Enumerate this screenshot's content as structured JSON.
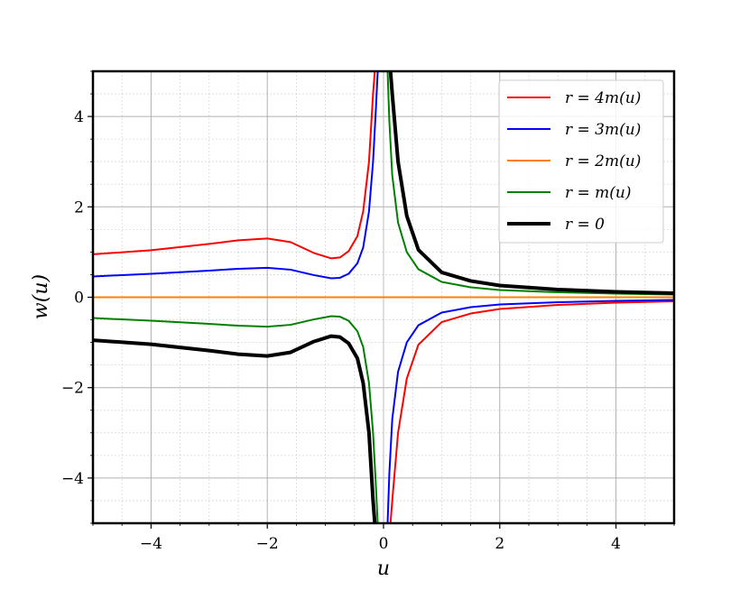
{
  "chart_data": {
    "type": "line",
    "title": "",
    "xlabel": "u",
    "ylabel": "w(u)",
    "xlim": [
      -5,
      5
    ],
    "ylim": [
      -5,
      5
    ],
    "grid": "major and minor",
    "legend_position": "top-right",
    "x_ticks": [
      {
        "value": -4,
        "label": "−4"
      },
      {
        "value": -2,
        "label": "−2"
      },
      {
        "value": 0,
        "label": "0"
      },
      {
        "value": 2,
        "label": "2"
      },
      {
        "value": 4,
        "label": "4"
      }
    ],
    "y_ticks": [
      {
        "value": -4,
        "label": "−4"
      },
      {
        "value": -2,
        "label": "−2"
      },
      {
        "value": 0,
        "label": "0"
      },
      {
        "value": 2,
        "label": "2"
      },
      {
        "value": 4,
        "label": "4"
      }
    ],
    "series": [
      {
        "name": "r = 4m(u)",
        "color": "#ff0000",
        "width": 2,
        "segments": [
          [
            [
              -5.0,
              0.95
            ],
            [
              -4.0,
              1.04
            ],
            [
              -3.0,
              1.18
            ],
            [
              -2.5,
              1.26
            ],
            [
              -2.0,
              1.3
            ],
            [
              -1.6,
              1.22
            ],
            [
              -1.2,
              0.98
            ],
            [
              -0.9,
              0.86
            ],
            [
              -0.75,
              0.88
            ],
            [
              -0.6,
              1.02
            ],
            [
              -0.45,
              1.35
            ],
            [
              -0.35,
              1.9
            ],
            [
              -0.25,
              3.0
            ],
            [
              -0.18,
              4.5
            ],
            [
              -0.15,
              5.0
            ]
          ],
          [
            [
              0.12,
              -5.0
            ],
            [
              0.15,
              -4.5
            ],
            [
              0.25,
              -3.0
            ],
            [
              0.4,
              -1.8
            ],
            [
              0.6,
              -1.05
            ],
            [
              1.0,
              -0.55
            ],
            [
              1.5,
              -0.36
            ],
            [
              2.0,
              -0.26
            ],
            [
              3.0,
              -0.17
            ],
            [
              4.0,
              -0.12
            ],
            [
              5.0,
              -0.09
            ]
          ]
        ]
      },
      {
        "name": "r = 3m(u)",
        "color": "#0000ff",
        "width": 2,
        "segments": [
          [
            [
              -5.0,
              0.46
            ],
            [
              -4.0,
              0.52
            ],
            [
              -3.0,
              0.59
            ],
            [
              -2.5,
              0.63
            ],
            [
              -2.0,
              0.65
            ],
            [
              -1.6,
              0.61
            ],
            [
              -1.2,
              0.49
            ],
            [
              -0.9,
              0.42
            ],
            [
              -0.75,
              0.43
            ],
            [
              -0.6,
              0.52
            ],
            [
              -0.45,
              0.75
            ],
            [
              -0.35,
              1.1
            ],
            [
              -0.25,
              1.9
            ],
            [
              -0.18,
              3.0
            ],
            [
              -0.13,
              4.2
            ],
            [
              -0.1,
              5.0
            ]
          ],
          [
            [
              0.07,
              -5.0
            ],
            [
              0.1,
              -3.9
            ],
            [
              0.15,
              -2.7
            ],
            [
              0.25,
              -1.65
            ],
            [
              0.4,
              -1.0
            ],
            [
              0.6,
              -0.62
            ],
            [
              1.0,
              -0.34
            ],
            [
              1.5,
              -0.22
            ],
            [
              2.0,
              -0.16
            ],
            [
              3.0,
              -0.11
            ],
            [
              4.0,
              -0.08
            ],
            [
              5.0,
              -0.06
            ]
          ]
        ]
      },
      {
        "name": "r = 2m(u)",
        "color": "#ff8000",
        "width": 2,
        "segments": [
          [
            [
              -5.0,
              0.0
            ],
            [
              5.0,
              0.0
            ]
          ]
        ]
      },
      {
        "name": "r = m(u)",
        "color": "#008000",
        "width": 2,
        "segments": [
          [
            [
              -5.0,
              -0.46
            ],
            [
              -4.0,
              -0.52
            ],
            [
              -3.0,
              -0.59
            ],
            [
              -2.5,
              -0.63
            ],
            [
              -2.0,
              -0.65
            ],
            [
              -1.6,
              -0.61
            ],
            [
              -1.2,
              -0.49
            ],
            [
              -0.9,
              -0.42
            ],
            [
              -0.75,
              -0.43
            ],
            [
              -0.6,
              -0.52
            ],
            [
              -0.45,
              -0.75
            ],
            [
              -0.35,
              -1.1
            ],
            [
              -0.25,
              -1.9
            ],
            [
              -0.18,
              -3.0
            ],
            [
              -0.13,
              -4.2
            ],
            [
              -0.1,
              -5.0
            ]
          ],
          [
            [
              0.07,
              5.0
            ],
            [
              0.1,
              3.9
            ],
            [
              0.15,
              2.7
            ],
            [
              0.25,
              1.65
            ],
            [
              0.4,
              1.0
            ],
            [
              0.6,
              0.62
            ],
            [
              1.0,
              0.34
            ],
            [
              1.5,
              0.22
            ],
            [
              2.0,
              0.16
            ],
            [
              3.0,
              0.11
            ],
            [
              4.0,
              0.08
            ],
            [
              5.0,
              0.06
            ]
          ]
        ]
      },
      {
        "name": "r = 0",
        "color": "#000000",
        "width": 4,
        "segments": [
          [
            [
              -5.0,
              -0.95
            ],
            [
              -4.0,
              -1.04
            ],
            [
              -3.0,
              -1.18
            ],
            [
              -2.5,
              -1.26
            ],
            [
              -2.0,
              -1.3
            ],
            [
              -1.6,
              -1.22
            ],
            [
              -1.2,
              -0.98
            ],
            [
              -0.9,
              -0.86
            ],
            [
              -0.75,
              -0.88
            ],
            [
              -0.6,
              -1.02
            ],
            [
              -0.45,
              -1.35
            ],
            [
              -0.35,
              -1.9
            ],
            [
              -0.25,
              -3.0
            ],
            [
              -0.18,
              -4.5
            ],
            [
              -0.15,
              -5.0
            ]
          ],
          [
            [
              0.12,
              5.0
            ],
            [
              0.15,
              4.5
            ],
            [
              0.25,
              3.0
            ],
            [
              0.4,
              1.8
            ],
            [
              0.6,
              1.05
            ],
            [
              1.0,
              0.55
            ],
            [
              1.5,
              0.36
            ],
            [
              2.0,
              0.26
            ],
            [
              3.0,
              0.17
            ],
            [
              4.0,
              0.12
            ],
            [
              5.0,
              0.09
            ]
          ]
        ]
      }
    ]
  }
}
